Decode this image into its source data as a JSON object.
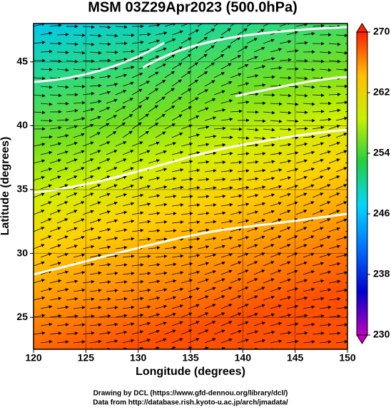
{
  "chart_data": {
    "type": "map",
    "title": "MSM 03Z29Apr2023 (500.0hPa)",
    "xlabel": "Longitude (degrees)",
    "ylabel": "Latitude  (degrees)",
    "xlim": [
      120,
      150
    ],
    "xticks": [
      120,
      125,
      130,
      135,
      140,
      145,
      150
    ],
    "ylim": [
      22.5,
      48
    ],
    "yticks": [
      25,
      30,
      35,
      40,
      45
    ],
    "grid": true,
    "colorbar": {
      "lim": [
        230,
        270
      ],
      "ticks": [
        230,
        238,
        246,
        254,
        262,
        270
      ],
      "colors": [
        "#c000c0",
        "#0000d0",
        "#0070ff",
        "#00d8ff",
        "#20d040",
        "#c8f000",
        "#ffc000",
        "#ff2000"
      ]
    },
    "credits": [
      "Drawing by DCL (https://www.gfd-dennou.org/library/dcl/)",
      "Data from http://database.rish.kyoto-u.ac.jp/arch/jmadata/"
    ]
  }
}
